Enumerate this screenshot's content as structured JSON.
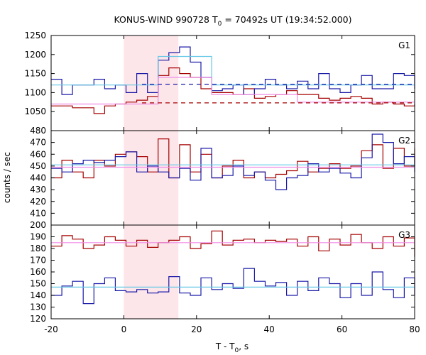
{
  "chart_data": {
    "type": "line",
    "title_parts": {
      "pre": "KONUS-WIND 990728 T",
      "sub": "0",
      "post": " = 70492s UT (19:34:52.000)"
    },
    "xlabel_parts": {
      "pre": "T - T",
      "sub": "0",
      "post": ", s"
    },
    "ylabel": "counts / sec",
    "xlim": [
      -20,
      80
    ],
    "xticks": [
      "-20",
      "0",
      "20",
      "40",
      "60",
      "80"
    ],
    "xtick_values": [
      -20,
      0,
      20,
      40,
      60,
      80
    ],
    "highlight_interval": [
      0,
      15
    ],
    "colors": {
      "dark_red": "#a50000",
      "dark_blue": "#1a1aa8",
      "light_pink": "#f08ce6",
      "light_cyan": "#66c8e6",
      "highlight": "#fde6ea"
    },
    "panels": [
      {
        "label": "G1",
        "ylim": [
          1000,
          1250
        ],
        "yticks": [
          "1000",
          "1050",
          "1100",
          "1150",
          "1200",
          "1250"
        ],
        "ytick_values": [
          1000,
          1050,
          1100,
          1150,
          1200,
          1250
        ],
        "bin_start": -20,
        "bin_width": 2.944,
        "series": [
          {
            "color": "dark_red",
            "style": "step",
            "values": [
              1065,
              1065,
              1060,
              1060,
              1045,
              1065,
              1070,
              1075,
              1080,
              1090,
              1145,
              1165,
              1150,
              1140,
              1110,
              1100,
              1100,
              1095,
              1110,
              1085,
              1090,
              1095,
              1105,
              1095,
              1095,
              1085,
              1080,
              1085,
              1090,
              1085,
              1070,
              1075,
              1070,
              1065,
              1070
            ]
          },
          {
            "color": "dark_blue",
            "style": "step",
            "values": [
              1135,
              1095,
              1120,
              1120,
              1135,
              1110,
              1120,
              1100,
              1150,
              1100,
              1185,
              1205,
              1220,
              1180,
              1140,
              1105,
              1110,
              1120,
              1095,
              1110,
              1135,
              1120,
              1110,
              1130,
              1110,
              1150,
              1110,
              1100,
              1120,
              1145,
              1110,
              1110,
              1150,
              1145,
              1110
            ]
          },
          {
            "color": "light_cyan",
            "style": "step",
            "values": [
              1120,
              1120,
              1120,
              1120,
              1120,
              1120,
              1120,
              1120,
              1120,
              1120,
              1195,
              1195,
              1195,
              1195,
              1195,
              1120,
              1120,
              1120,
              1120,
              1120,
              1120,
              1120,
              1120,
              1120,
              1120,
              1120,
              1120,
              1120,
              1120,
              1120,
              1120,
              1120,
              1120,
              1120,
              1120
            ]
          },
          {
            "color": "light_pink",
            "style": "step",
            "values": [
              1070,
              1070,
              1070,
              1070,
              1070,
              1070,
              1070,
              1070,
              1070,
              1070,
              1140,
              1140,
              1140,
              1140,
              1140,
              1095,
              1095,
              1095,
              1095,
              1095,
              1095,
              1095,
              1095,
              1075,
              1075,
              1075,
              1075,
              1075,
              1075,
              1075,
              1075,
              1075,
              1075,
              1075,
              1075
            ]
          },
          {
            "color": "dark_blue",
            "style": "dashed",
            "x": [
              5,
              80
            ],
            "y": [
              1122,
              1122
            ]
          },
          {
            "color": "dark_red",
            "style": "dashed",
            "x": [
              5,
              80
            ],
            "y": [
              1073,
              1073
            ]
          }
        ]
      },
      {
        "label": "G2",
        "ylim": [
          400,
          480
        ],
        "yticks": [
          "400",
          "410",
          "420",
          "430",
          "440",
          "450",
          "460",
          "470",
          "480"
        ],
        "ytick_values": [
          400,
          410,
          420,
          430,
          440,
          450,
          460,
          470,
          480
        ],
        "bin_start": -20,
        "bin_width": 2.944,
        "series": [
          {
            "color": "dark_red",
            "style": "step",
            "values": [
              440,
              455,
              445,
              440,
              455,
              450,
              460,
              462,
              458,
              445,
              473,
              440,
              468,
              445,
              460,
              440,
              450,
              455,
              440,
              445,
              440,
              443,
              446,
              454,
              445,
              448,
              452,
              448,
              450,
              463,
              468,
              448,
              465,
              450,
              465
            ]
          },
          {
            "color": "dark_blue",
            "style": "step",
            "values": [
              448,
              445,
              452,
              455,
              453,
              455,
              458,
              462,
              445,
              450,
              445,
              440,
              448,
              438,
              465,
              440,
              442,
              450,
              442,
              445,
              438,
              430,
              440,
              442,
              452,
              445,
              448,
              444,
              440,
              457,
              477,
              470,
              452,
              458,
              445
            ]
          },
          {
            "color": "light_cyan",
            "style": "line",
            "x": [
              -20,
              80
            ],
            "y": [
              451,
              451
            ]
          },
          {
            "color": "light_pink",
            "style": "line",
            "x": [
              -20,
              80
            ],
            "y": [
              449,
              449
            ]
          }
        ]
      },
      {
        "label": "G3",
        "ylim": [
          120,
          200
        ],
        "yticks": [
          "120",
          "130",
          "140",
          "150",
          "160",
          "170",
          "180",
          "190",
          "200"
        ],
        "ytick_values": [
          120,
          130,
          140,
          150,
          160,
          170,
          180,
          190,
          200
        ],
        "bin_start": -20,
        "bin_width": 2.944,
        "series": [
          {
            "color": "dark_red",
            "style": "step",
            "values": [
              182,
              191,
              188,
              180,
              183,
              190,
              187,
              182,
              187,
              181,
              185,
              187,
              190,
              180,
              184,
              195,
              183,
              187,
              188,
              185,
              187,
              186,
              188,
              182,
              190,
              178,
              188,
              183,
              192,
              185,
              180,
              190,
              182,
              189,
              173
            ]
          },
          {
            "color": "dark_blue",
            "style": "step",
            "values": [
              140,
              148,
              152,
              133,
              150,
              155,
              144,
              143,
              145,
              142,
              143,
              156,
              142,
              140,
              155,
              145,
              150,
              146,
              163,
              152,
              148,
              151,
              140,
              152,
              144,
              155,
              150,
              138,
              150,
              140,
              160,
              145,
              138,
              155,
              140
            ]
          },
          {
            "color": "light_pink",
            "style": "line",
            "x": [
              -20,
              80
            ],
            "y": [
              185,
              185
            ]
          },
          {
            "color": "light_cyan",
            "style": "line",
            "x": [
              -20,
              80
            ],
            "y": [
              147,
              147
            ]
          }
        ]
      }
    ]
  }
}
